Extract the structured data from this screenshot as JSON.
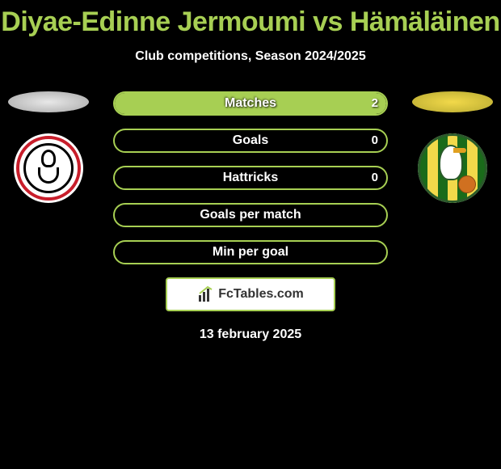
{
  "title": "Diyae-Edinne Jermoumi vs Hämäläinen",
  "subtitle": "Club competitions, Season 2024/2025",
  "date": "13 february 2025",
  "brand": "FcTables.com",
  "colors": {
    "accent": "#a7cf53",
    "pill_border": "#a7cf53",
    "pill_fill": "#a7cf53",
    "plate_left": "#e8e8e8",
    "plate_right": "#f2d94a",
    "background": "#000000",
    "text": "#ffffff"
  },
  "left_team": {
    "name": "Ajax",
    "plate_color": "#e8e8e8"
  },
  "right_team": {
    "name": "ADO Den Haag",
    "plate_color": "#f2d94a",
    "stripes": [
      "#1a6b1a",
      "#f2d94a",
      "#1a6b1a",
      "#f2d94a",
      "#1a6b1a",
      "#f2d94a",
      "#1a6b1a"
    ]
  },
  "rows": [
    {
      "label": "Matches",
      "left": "",
      "right": "2",
      "left_pct": 0,
      "right_pct": 100
    },
    {
      "label": "Goals",
      "left": "",
      "right": "0",
      "left_pct": 0,
      "right_pct": 0
    },
    {
      "label": "Hattricks",
      "left": "",
      "right": "0",
      "left_pct": 0,
      "right_pct": 0
    },
    {
      "label": "Goals per match",
      "left": "",
      "right": "",
      "left_pct": 0,
      "right_pct": 0
    },
    {
      "label": "Min per goal",
      "left": "",
      "right": "",
      "left_pct": 0,
      "right_pct": 0
    }
  ]
}
